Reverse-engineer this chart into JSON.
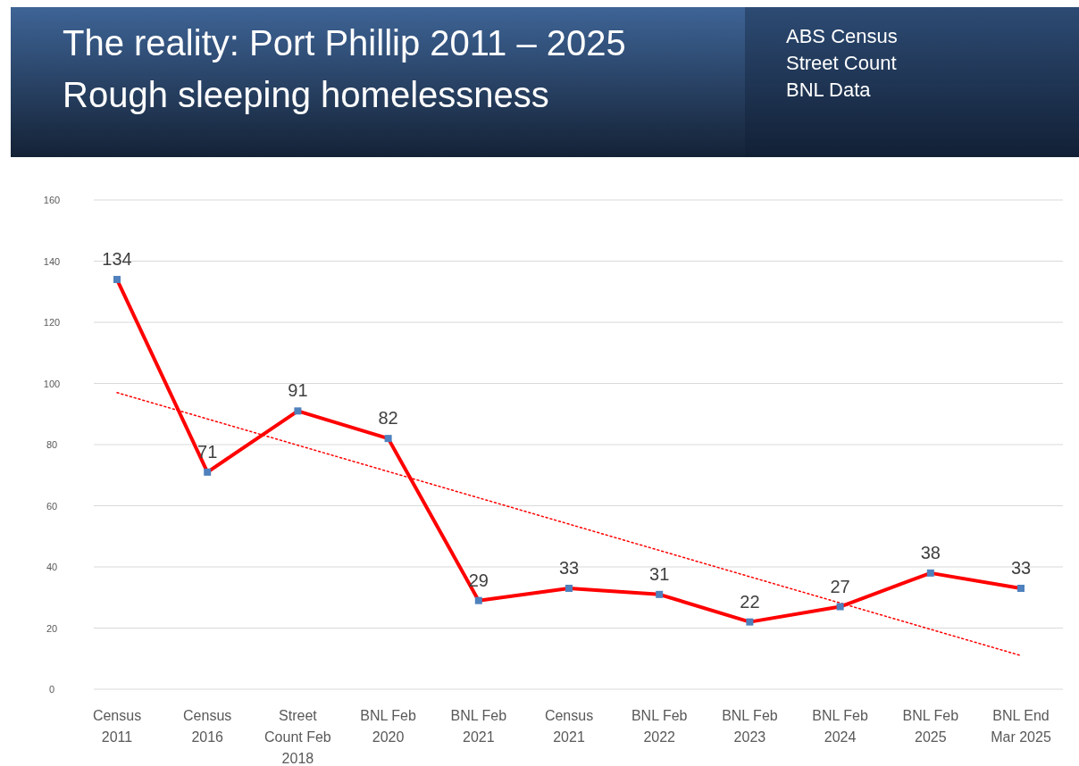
{
  "chart_data": {
    "type": "line",
    "title": "The reality: Port Phillip 2011 – 2025",
    "subtitle": "Rough sleeping homelessness",
    "annotations": [
      "ABS Census",
      "Street Count",
      "BNL Data"
    ],
    "categories": [
      "Census 2011",
      "Census 2016",
      "Street Count Feb 2018",
      "BNL Feb 2020",
      "BNL Feb 2021",
      "Census 2021",
      "BNL Feb 2022",
      "BNL Feb 2023",
      "BNL Feb 2024",
      "BNL Feb 2025",
      "BNL End Mar 2025"
    ],
    "series": [
      {
        "color": "#ff0000",
        "values": [
          134,
          71,
          91,
          82,
          29,
          33,
          31,
          22,
          27,
          38,
          33
        ],
        "marker": "square",
        "line_style": "solid",
        "data_labels": true
      },
      {
        "type": "line",
        "color": "#ff0000",
        "x": [
          "Census 2011",
          "BNL End Mar 2025"
        ],
        "values": [
          97,
          11
        ],
        "marker": "none",
        "line_style": "dotted"
      }
    ],
    "ylim": [
      0,
      160
    ],
    "yticks": [
      0,
      20,
      40,
      60,
      80,
      100,
      120,
      140,
      160
    ],
    "grid": "y"
  }
}
